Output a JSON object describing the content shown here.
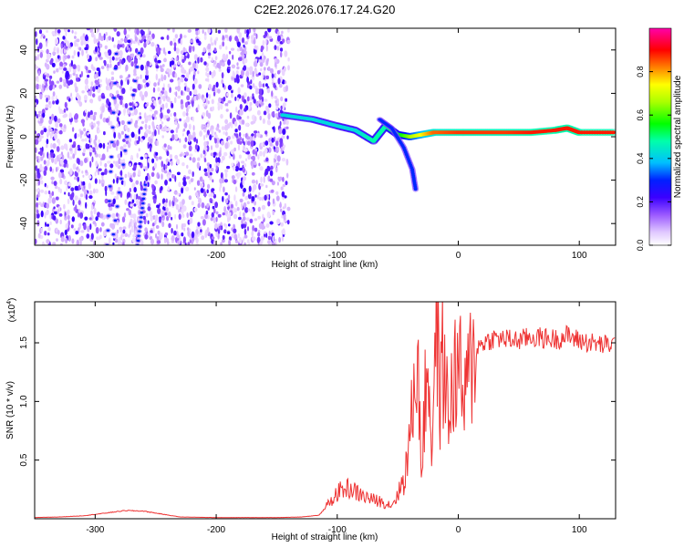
{
  "title": "C2E2.2026.076.17.24.G20",
  "chart_data": [
    {
      "type": "heatmap",
      "xlabel": "Height of straight line (km)",
      "ylabel": "Frequency (Hz)",
      "xlim": [
        -350,
        130
      ],
      "ylim": [
        -50,
        50
      ],
      "xticks": [
        -300,
        -200,
        -100,
        0,
        100
      ],
      "yticks": [
        -40,
        -20,
        0,
        20,
        40
      ],
      "colorbar": {
        "label": "Normalized spectral amplitude",
        "ticks": [
          0.0,
          0.2,
          0.4,
          0.6,
          0.8
        ],
        "range": [
          0,
          1
        ],
        "colors": [
          "#ffffff",
          "#e6ccff",
          "#9b59ff",
          "#3b00ff",
          "#0000ff",
          "#00bfff",
          "#00ffaa",
          "#00ff00",
          "#aaff00",
          "#ffff00",
          "#ff8000",
          "#ff0000",
          "#ff00aa"
        ]
      },
      "features": {
        "noise_region_x": [
          -350,
          -140
        ],
        "diagonal_tracks": [
          {
            "x": [
              -290,
              -282
            ],
            "y": [
              -50,
              45
            ]
          },
          {
            "x": [
              -285,
              -262
            ],
            "y": [
              -45,
              45
            ]
          },
          {
            "x": [
              -265,
              -258
            ],
            "y": [
              -50,
              -20
            ]
          }
        ],
        "main_signal": {
          "x": [
            -145,
            -120,
            -100,
            -85,
            -70,
            -60,
            -50,
            -40,
            -30,
            -20,
            0,
            20,
            40,
            60,
            80,
            90,
            100,
            130
          ],
          "y": [
            10,
            8,
            5,
            3,
            -2,
            5,
            1,
            0,
            1,
            2,
            2,
            2,
            2,
            2,
            3,
            4,
            2,
            2
          ],
          "amplitude": [
            0.45,
            0.45,
            0.45,
            0.45,
            0.5,
            0.5,
            0.55,
            0.65,
            0.75,
            0.85,
            0.88,
            0.88,
            0.88,
            0.9,
            0.9,
            0.9,
            0.9,
            0.9
          ]
        },
        "secondary_signal": {
          "x": [
            -65,
            -55,
            -45,
            -38,
            -35
          ],
          "y": [
            8,
            4,
            -5,
            -15,
            -25
          ]
        }
      }
    },
    {
      "type": "line",
      "xlabel": "Height of straight line (km)",
      "ylabel": "SNR (10 * v/v)",
      "yscale_label": "(x10",
      "yscale_exp": "4",
      "xlim": [
        -350,
        130
      ],
      "ylim": [
        0,
        18500
      ],
      "xticks": [
        -300,
        -200,
        -100,
        0,
        100
      ],
      "yticks": [
        5000,
        10000,
        15000
      ],
      "ytick_labels": [
        "0.5",
        "1.0",
        "1.5"
      ],
      "series": [
        {
          "color": "#ee3333",
          "x": [
            -350,
            -330,
            -310,
            -290,
            -275,
            -260,
            -245,
            -230,
            -200,
            -170,
            -150,
            -130,
            -115,
            -105,
            -100,
            -95,
            -90,
            -85,
            -80,
            -75,
            -70,
            -65,
            -60,
            -55,
            -50,
            -45,
            -42,
            -40,
            -38,
            -36,
            -35,
            -33,
            -31,
            -30,
            -28,
            -25,
            -22,
            -20,
            -18,
            -16,
            -15,
            -13,
            -10,
            -8,
            -5,
            -2,
            0,
            3,
            5,
            8,
            10,
            15,
            20,
            25,
            30,
            40,
            50,
            60,
            70,
            80,
            90,
            100,
            110,
            120,
            130
          ],
          "y": [
            100,
            150,
            250,
            500,
            700,
            650,
            400,
            150,
            100,
            100,
            100,
            150,
            300,
            1500,
            2200,
            2500,
            2600,
            2300,
            2000,
            1800,
            1600,
            1500,
            1300,
            1200,
            2000,
            3500,
            5000,
            7000,
            9000,
            12000,
            15500,
            11000,
            7000,
            4000,
            9000,
            14000,
            6000,
            11000,
            17500,
            13000,
            9000,
            14000,
            11000,
            8000,
            11500,
            12500,
            13500,
            11000,
            10000,
            11500,
            13000,
            14500,
            15000,
            15200,
            15400,
            15300,
            15200,
            15500,
            15400,
            15300,
            15600,
            15200,
            15000,
            14800,
            14900
          ]
        }
      ]
    }
  ]
}
